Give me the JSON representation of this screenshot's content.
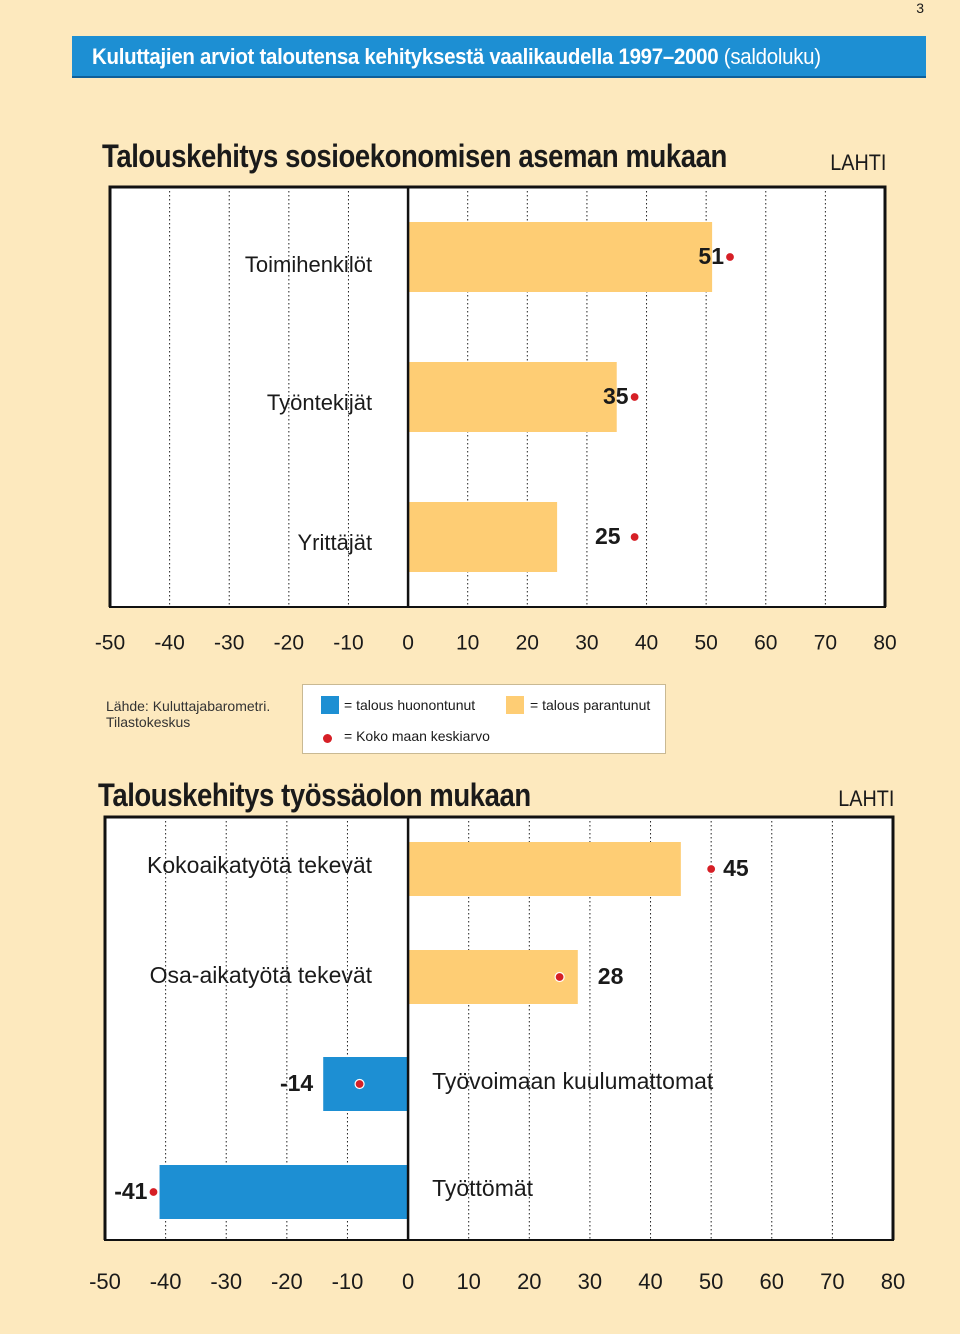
{
  "page_number": "3",
  "banner": {
    "title": "Kuluttajien arviot taloutensa kehityksestä vaalikaudella 1997–2000",
    "subtitle": "(saldoluku)"
  },
  "colors": {
    "banner": "#1d8fd3",
    "improved": "#fecd74",
    "worsened": "#1d8fd3",
    "marker": "#d61f26",
    "background": "#fde9be"
  },
  "source": {
    "line1": "Lähde: Kuluttajabarometri.",
    "line2": "Tilastokeskus"
  },
  "legend": {
    "worsened": "= talous huonontunut",
    "improved": "= talous parantunut",
    "average": "= Koko maan keskiarvo"
  },
  "chart_data": [
    {
      "type": "bar",
      "orientation": "horizontal",
      "title": "Talouskehitys sosioekonomisen aseman mukaan",
      "region": "LAHTI",
      "xlim": [
        -50,
        80
      ],
      "xticks": [
        -50,
        -40,
        -30,
        -20,
        -10,
        0,
        10,
        20,
        30,
        40,
        50,
        60,
        70,
        80
      ],
      "categories": [
        "Toimihenkilöt",
        "Työntekijät",
        "Yrittäjät"
      ],
      "values": [
        51,
        35,
        25
      ],
      "value_labels": [
        "51",
        "35",
        "25"
      ],
      "average_markers": [
        54,
        38,
        38
      ]
    },
    {
      "type": "bar",
      "orientation": "horizontal",
      "title": "Talouskehitys työssäolon mukaan",
      "region": "LAHTI",
      "xlim": [
        -50,
        80
      ],
      "xticks": [
        -50,
        -40,
        -30,
        -20,
        -10,
        0,
        10,
        20,
        30,
        40,
        50,
        60,
        70,
        80
      ],
      "categories": [
        "Kokoaikatyötä tekevät",
        "Osa-aikatyötä tekevät",
        "Työvoimaan kuulumattomat",
        "Työttömät"
      ],
      "values": [
        45,
        28,
        -14,
        -41
      ],
      "value_labels": [
        "45",
        "28",
        "-14",
        "-41"
      ],
      "average_markers": [
        50,
        25,
        -8,
        -42
      ]
    }
  ]
}
